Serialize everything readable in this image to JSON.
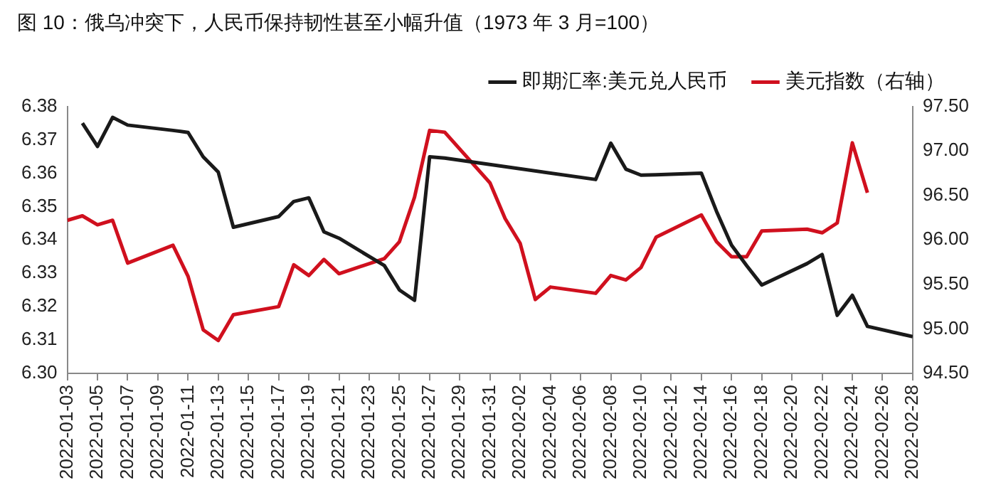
{
  "chart_data": {
    "type": "line",
    "title": "图 10：俄乌冲突下，人民币保持韧性甚至小幅升值（1973 年 3 月=100）",
    "series": [
      {
        "name": "即期汇率:美元兑人民币",
        "color": "#1a1a1a",
        "x": [
          "2022-01-04",
          "2022-01-05",
          "2022-01-06",
          "2022-01-07",
          "2022-01-10",
          "2022-01-11",
          "2022-01-12",
          "2022-01-13",
          "2022-01-14",
          "2022-01-17",
          "2022-01-18",
          "2022-01-19",
          "2022-01-20",
          "2022-01-21",
          "2022-01-24",
          "2022-01-25",
          "2022-01-26",
          "2022-01-27",
          "2022-01-28",
          "2022-02-07",
          "2022-02-08",
          "2022-02-09",
          "2022-02-10",
          "2022-02-11",
          "2022-02-14",
          "2022-02-15",
          "2022-02-16",
          "2022-02-17",
          "2022-02-18",
          "2022-02-21",
          "2022-02-22",
          "2022-02-23",
          "2022-02-24",
          "2022-02-25",
          "2022-02-28"
        ],
        "values": [
          6.375,
          6.368,
          6.3767,
          6.3744,
          6.3728,
          6.3722,
          6.3649,
          6.3603,
          6.3438,
          6.347,
          6.3515,
          6.3526,
          6.3424,
          6.3405,
          6.3323,
          6.325,
          6.3219,
          6.3649,
          6.3645,
          6.3581,
          6.369,
          6.3612,
          6.3594,
          6.3595,
          6.36,
          6.3486,
          6.3384,
          6.3323,
          6.3265,
          6.3329,
          6.3356,
          6.3174,
          6.3234,
          6.3141,
          6.311
        ]
      },
      {
        "name": "美元指数（右轴）",
        "color": "#d0101e",
        "axis": "y2",
        "x": [
          "2022-01-03",
          "2022-01-04",
          "2022-01-05",
          "2022-01-06",
          "2022-01-07",
          "2022-01-10",
          "2022-01-11",
          "2022-01-12",
          "2022-01-13",
          "2022-01-14",
          "2022-01-17",
          "2022-01-18",
          "2022-01-19",
          "2022-01-20",
          "2022-01-21",
          "2022-01-24",
          "2022-01-25",
          "2022-01-26",
          "2022-01-27",
          "2022-01-28",
          "2022-01-31",
          "2022-02-01",
          "2022-02-02",
          "2022-02-03",
          "2022-02-04",
          "2022-02-07",
          "2022-02-08",
          "2022-02-09",
          "2022-02-10",
          "2022-02-11",
          "2022-02-14",
          "2022-02-15",
          "2022-02-16",
          "2022-02-17",
          "2022-02-18",
          "2022-02-21",
          "2022-02-22",
          "2022-02-23",
          "2022-02-24",
          "2022-02-25"
        ],
        "values": [
          96.22,
          96.27,
          96.17,
          96.22,
          95.74,
          95.94,
          95.59,
          94.99,
          94.87,
          95.16,
          95.25,
          95.72,
          95.6,
          95.78,
          95.62,
          95.79,
          95.98,
          96.48,
          97.23,
          97.21,
          96.64,
          96.24,
          95.96,
          95.33,
          95.47,
          95.4,
          95.6,
          95.55,
          95.69,
          96.03,
          96.28,
          95.98,
          95.81,
          95.81,
          96.1,
          96.12,
          96.08,
          96.19,
          97.09,
          96.53
        ]
      }
    ],
    "xlim": [
      "2022-01-03",
      "2022-02-28"
    ],
    "xticks": [
      "2022-01-03",
      "2022-01-05",
      "2022-01-07",
      "2022-01-09",
      "2022-01-11",
      "2022-01-13",
      "2022-01-15",
      "2022-01-17",
      "2022-01-19",
      "2022-01-21",
      "2022-01-23",
      "2022-01-25",
      "2022-01-27",
      "2022-01-29",
      "2022-01-31",
      "2022-02-02",
      "2022-02-04",
      "2022-02-06",
      "2022-02-08",
      "2022-02-10",
      "2022-02-12",
      "2022-02-14",
      "2022-02-16",
      "2022-02-18",
      "2022-02-20",
      "2022-02-22",
      "2022-02-24",
      "2022-02-26",
      "2022-02-28"
    ],
    "ylim": [
      6.3,
      6.38
    ],
    "yticks": [
      {
        "value": 6.3,
        "label": "6.30"
      },
      6.31,
      6.32,
      6.33,
      6.34,
      6.35,
      6.36,
      6.37,
      6.38
    ],
    "y2lim": [
      94.5,
      97.5
    ],
    "y2ticks": [
      {
        "value": 94.5,
        "label": "94.50"
      },
      {
        "value": 95,
        "label": "95.00"
      },
      {
        "value": 95.5,
        "label": "95.50"
      },
      {
        "value": 96,
        "label": "96.00"
      },
      {
        "value": 96.5,
        "label": "96.50"
      },
      {
        "value": 97,
        "label": "97.00"
      },
      {
        "value": 97.5,
        "label": "97.50"
      }
    ],
    "legend": "top right",
    "grid": false,
    "marker": "none",
    "line_style": "solid"
  }
}
